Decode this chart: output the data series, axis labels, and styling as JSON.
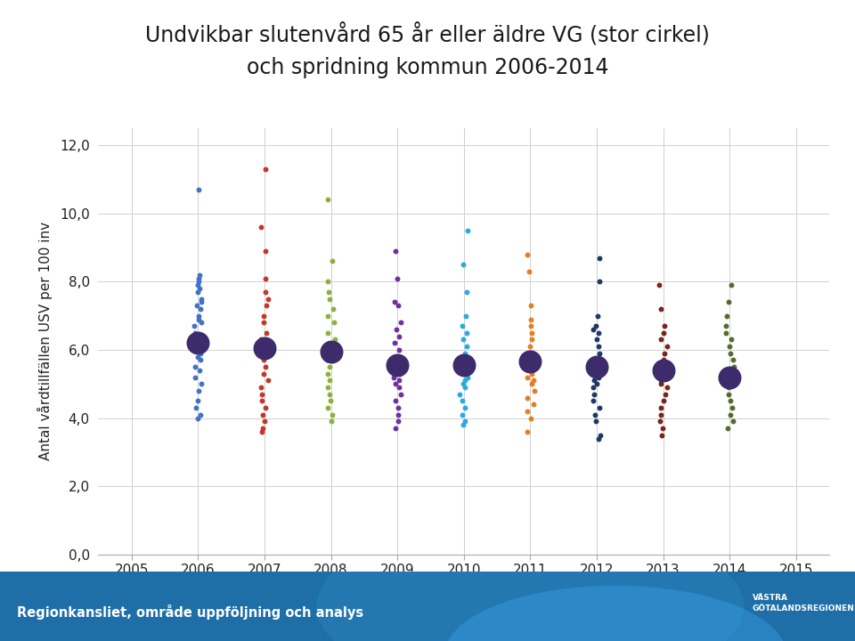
{
  "title_line1": "Undvikbar slutenvård 65 år eller äldre VG (stor cirkel)",
  "title_line2": "och spridning kommun 2006-2014",
  "ylabel": "Antal vårdtillfällen USV per 100 inv",
  "xlim": [
    2004.5,
    2015.5
  ],
  "ylim": [
    0,
    12.5
  ],
  "yticks": [
    0.0,
    2.0,
    4.0,
    6.0,
    8.0,
    10.0,
    12.0
  ],
  "ytick_labels": [
    "0,0",
    "2,0",
    "4,0",
    "6,0",
    "8,0",
    "10,0",
    "12,0"
  ],
  "xticks": [
    2005,
    2006,
    2007,
    2008,
    2009,
    2010,
    2011,
    2012,
    2013,
    2014,
    2015
  ],
  "background_color": "#ffffff",
  "footer_text": "Regionkansliet, område uppföljning och analys",
  "years": [
    2006,
    2007,
    2008,
    2009,
    2010,
    2011,
    2012,
    2013,
    2014
  ],
  "vg_means": [
    6.2,
    6.05,
    5.95,
    5.55,
    5.55,
    5.65,
    5.5,
    5.4,
    5.2
  ],
  "scatter_colors": [
    "#4472c4",
    "#c0392b",
    "#8db13e",
    "#7030a0",
    "#29abe2",
    "#e67e22",
    "#1f3864",
    "#7b241c",
    "#556b2f"
  ],
  "scatter_data": {
    "2006": [
      10.7,
      8.2,
      8.1,
      8.0,
      7.9,
      7.8,
      7.7,
      7.5,
      7.4,
      7.3,
      7.2,
      7.0,
      6.9,
      6.8,
      6.7,
      6.5,
      6.4,
      6.3,
      6.2,
      6.1,
      6.0,
      5.9,
      5.8,
      5.7,
      5.5,
      5.4,
      5.2,
      5.0,
      4.8,
      4.5,
      4.3,
      4.1,
      4.0
    ],
    "2007": [
      11.3,
      9.6,
      8.9,
      8.1,
      7.7,
      7.5,
      7.3,
      7.0,
      6.8,
      6.5,
      6.3,
      6.2,
      6.1,
      6.0,
      5.9,
      5.8,
      5.7,
      5.5,
      5.3,
      5.1,
      4.9,
      4.7,
      4.5,
      4.3,
      4.1,
      3.9,
      3.7,
      3.6
    ],
    "2008": [
      10.4,
      8.6,
      8.0,
      7.7,
      7.5,
      7.2,
      7.0,
      6.8,
      6.5,
      6.3,
      6.1,
      6.0,
      5.9,
      5.8,
      5.7,
      5.5,
      5.3,
      5.1,
      4.9,
      4.7,
      4.5,
      4.3,
      4.1,
      3.9
    ],
    "2009": [
      8.9,
      8.1,
      7.4,
      7.3,
      6.8,
      6.6,
      6.4,
      6.2,
      6.0,
      5.8,
      5.6,
      5.5,
      5.4,
      5.3,
      5.2,
      5.1,
      5.0,
      4.9,
      4.7,
      4.5,
      4.3,
      4.1,
      3.9,
      3.7
    ],
    "2010": [
      9.5,
      8.5,
      7.7,
      7.0,
      6.7,
      6.5,
      6.3,
      6.1,
      5.9,
      5.7,
      5.5,
      5.4,
      5.3,
      5.2,
      5.1,
      5.0,
      4.9,
      4.7,
      4.5,
      4.3,
      4.1,
      3.9,
      3.8
    ],
    "2011": [
      8.8,
      8.3,
      7.3,
      6.9,
      6.7,
      6.5,
      6.3,
      6.1,
      5.9,
      5.7,
      5.6,
      5.5,
      5.4,
      5.3,
      5.2,
      5.1,
      5.0,
      4.8,
      4.6,
      4.4,
      4.2,
      4.0,
      3.6
    ],
    "2012": [
      8.7,
      8.0,
      7.0,
      6.7,
      6.6,
      6.5,
      6.3,
      6.1,
      5.9,
      5.7,
      5.5,
      5.4,
      5.3,
      5.2,
      5.1,
      5.0,
      4.9,
      4.7,
      4.5,
      4.3,
      4.1,
      3.9,
      3.5,
      3.4
    ],
    "2013": [
      7.9,
      7.2,
      6.7,
      6.5,
      6.3,
      6.1,
      5.9,
      5.7,
      5.5,
      5.4,
      5.3,
      5.2,
      5.1,
      5.0,
      4.9,
      4.7,
      4.5,
      4.3,
      4.1,
      3.9,
      3.7,
      3.5
    ],
    "2014": [
      7.9,
      7.4,
      7.0,
      6.7,
      6.5,
      6.3,
      6.1,
      5.9,
      5.7,
      5.5,
      5.4,
      5.3,
      5.2,
      5.1,
      5.0,
      4.9,
      4.7,
      4.5,
      4.3,
      4.1,
      3.9,
      3.7
    ]
  },
  "large_dot_color": "#3d2b6b",
  "large_dot_size": 350,
  "small_dot_size": 18,
  "title_fontsize": 17,
  "axis_label_fontsize": 11,
  "tick_fontsize": 11
}
